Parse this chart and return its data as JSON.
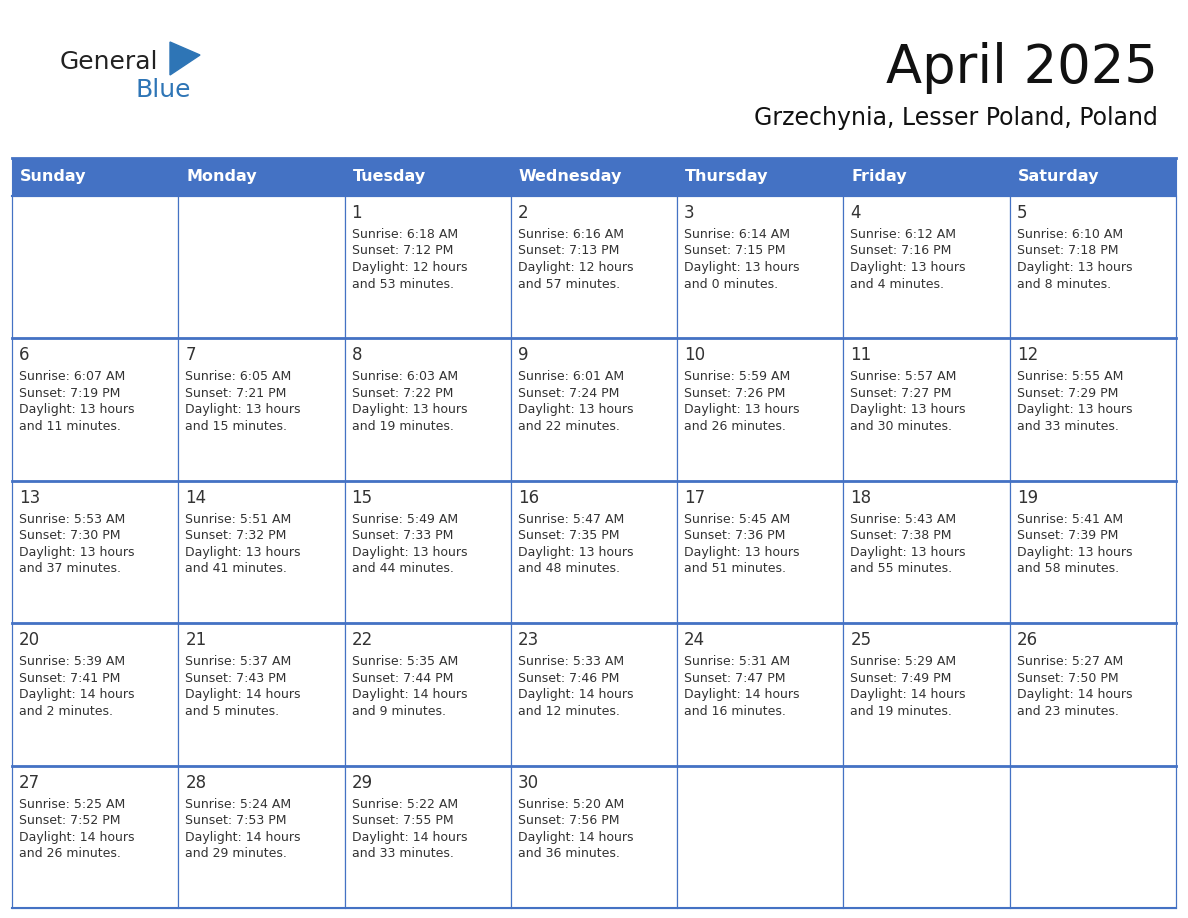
{
  "title": "April 2025",
  "subtitle": "Grzechynia, Lesser Poland, Poland",
  "days_of_week": [
    "Sunday",
    "Monday",
    "Tuesday",
    "Wednesday",
    "Thursday",
    "Friday",
    "Saturday"
  ],
  "header_bg": "#4472C4",
  "header_text": "#FFFFFF",
  "cell_bg_white": "#FFFFFF",
  "cell_bg_gray": "#F0F0F0",
  "border_color": "#4472C4",
  "text_color": "#333333",
  "logo_general_color": "#222222",
  "logo_blue_color": "#2E75B6",
  "weeks": [
    [
      {
        "day": null,
        "info": ""
      },
      {
        "day": null,
        "info": ""
      },
      {
        "day": 1,
        "info": "Sunrise: 6:18 AM\nSunset: 7:12 PM\nDaylight: 12 hours\nand 53 minutes."
      },
      {
        "day": 2,
        "info": "Sunrise: 6:16 AM\nSunset: 7:13 PM\nDaylight: 12 hours\nand 57 minutes."
      },
      {
        "day": 3,
        "info": "Sunrise: 6:14 AM\nSunset: 7:15 PM\nDaylight: 13 hours\nand 0 minutes."
      },
      {
        "day": 4,
        "info": "Sunrise: 6:12 AM\nSunset: 7:16 PM\nDaylight: 13 hours\nand 4 minutes."
      },
      {
        "day": 5,
        "info": "Sunrise: 6:10 AM\nSunset: 7:18 PM\nDaylight: 13 hours\nand 8 minutes."
      }
    ],
    [
      {
        "day": 6,
        "info": "Sunrise: 6:07 AM\nSunset: 7:19 PM\nDaylight: 13 hours\nand 11 minutes."
      },
      {
        "day": 7,
        "info": "Sunrise: 6:05 AM\nSunset: 7:21 PM\nDaylight: 13 hours\nand 15 minutes."
      },
      {
        "day": 8,
        "info": "Sunrise: 6:03 AM\nSunset: 7:22 PM\nDaylight: 13 hours\nand 19 minutes."
      },
      {
        "day": 9,
        "info": "Sunrise: 6:01 AM\nSunset: 7:24 PM\nDaylight: 13 hours\nand 22 minutes."
      },
      {
        "day": 10,
        "info": "Sunrise: 5:59 AM\nSunset: 7:26 PM\nDaylight: 13 hours\nand 26 minutes."
      },
      {
        "day": 11,
        "info": "Sunrise: 5:57 AM\nSunset: 7:27 PM\nDaylight: 13 hours\nand 30 minutes."
      },
      {
        "day": 12,
        "info": "Sunrise: 5:55 AM\nSunset: 7:29 PM\nDaylight: 13 hours\nand 33 minutes."
      }
    ],
    [
      {
        "day": 13,
        "info": "Sunrise: 5:53 AM\nSunset: 7:30 PM\nDaylight: 13 hours\nand 37 minutes."
      },
      {
        "day": 14,
        "info": "Sunrise: 5:51 AM\nSunset: 7:32 PM\nDaylight: 13 hours\nand 41 minutes."
      },
      {
        "day": 15,
        "info": "Sunrise: 5:49 AM\nSunset: 7:33 PM\nDaylight: 13 hours\nand 44 minutes."
      },
      {
        "day": 16,
        "info": "Sunrise: 5:47 AM\nSunset: 7:35 PM\nDaylight: 13 hours\nand 48 minutes."
      },
      {
        "day": 17,
        "info": "Sunrise: 5:45 AM\nSunset: 7:36 PM\nDaylight: 13 hours\nand 51 minutes."
      },
      {
        "day": 18,
        "info": "Sunrise: 5:43 AM\nSunset: 7:38 PM\nDaylight: 13 hours\nand 55 minutes."
      },
      {
        "day": 19,
        "info": "Sunrise: 5:41 AM\nSunset: 7:39 PM\nDaylight: 13 hours\nand 58 minutes."
      }
    ],
    [
      {
        "day": 20,
        "info": "Sunrise: 5:39 AM\nSunset: 7:41 PM\nDaylight: 14 hours\nand 2 minutes."
      },
      {
        "day": 21,
        "info": "Sunrise: 5:37 AM\nSunset: 7:43 PM\nDaylight: 14 hours\nand 5 minutes."
      },
      {
        "day": 22,
        "info": "Sunrise: 5:35 AM\nSunset: 7:44 PM\nDaylight: 14 hours\nand 9 minutes."
      },
      {
        "day": 23,
        "info": "Sunrise: 5:33 AM\nSunset: 7:46 PM\nDaylight: 14 hours\nand 12 minutes."
      },
      {
        "day": 24,
        "info": "Sunrise: 5:31 AM\nSunset: 7:47 PM\nDaylight: 14 hours\nand 16 minutes."
      },
      {
        "day": 25,
        "info": "Sunrise: 5:29 AM\nSunset: 7:49 PM\nDaylight: 14 hours\nand 19 minutes."
      },
      {
        "day": 26,
        "info": "Sunrise: 5:27 AM\nSunset: 7:50 PM\nDaylight: 14 hours\nand 23 minutes."
      }
    ],
    [
      {
        "day": 27,
        "info": "Sunrise: 5:25 AM\nSunset: 7:52 PM\nDaylight: 14 hours\nand 26 minutes."
      },
      {
        "day": 28,
        "info": "Sunrise: 5:24 AM\nSunset: 7:53 PM\nDaylight: 14 hours\nand 29 minutes."
      },
      {
        "day": 29,
        "info": "Sunrise: 5:22 AM\nSunset: 7:55 PM\nDaylight: 14 hours\nand 33 minutes."
      },
      {
        "day": 30,
        "info": "Sunrise: 5:20 AM\nSunset: 7:56 PM\nDaylight: 14 hours\nand 36 minutes."
      },
      {
        "day": null,
        "info": ""
      },
      {
        "day": null,
        "info": ""
      },
      {
        "day": null,
        "info": ""
      }
    ]
  ]
}
